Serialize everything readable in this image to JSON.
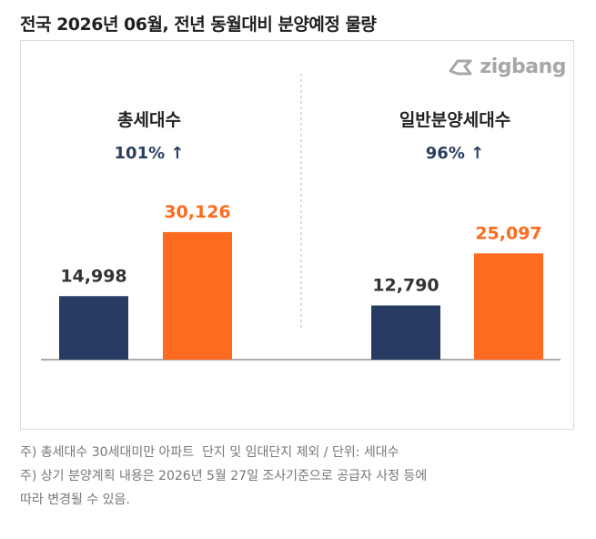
{
  "title": "전국 2026년 06월, 전년 동월대비 분양예정 물량",
  "logo": {
    "text": "zigbang",
    "icon": "zigbang-logo-icon"
  },
  "colors": {
    "prev_year": "#283c63",
    "current": "#fc6b1f",
    "growth": "#2b3e5f"
  },
  "chart_data": [
    {
      "type": "bar",
      "title": "총세대수",
      "growth_label": "101% ↑",
      "categories": [
        "",
        ""
      ],
      "values": [
        14998,
        30126
      ],
      "value_labels": [
        "14,998",
        "30,126"
      ]
    },
    {
      "type": "bar",
      "title": "일반분양세대수",
      "growth_label": "96% ↑",
      "categories": [
        "",
        ""
      ],
      "values": [
        12790,
        25097
      ],
      "value_labels": [
        "12,790",
        "25,097"
      ]
    }
  ],
  "notes": [
    "주) 총세대수 30세대미만 아파트  단지 및 임대단지 제외 / 단위: 세대수",
    "주) 상기 분양계획 내용은 2026년 5월 27일 조사기준으로 공급자 사정 등에",
    "따라 변경될 수 있음."
  ]
}
